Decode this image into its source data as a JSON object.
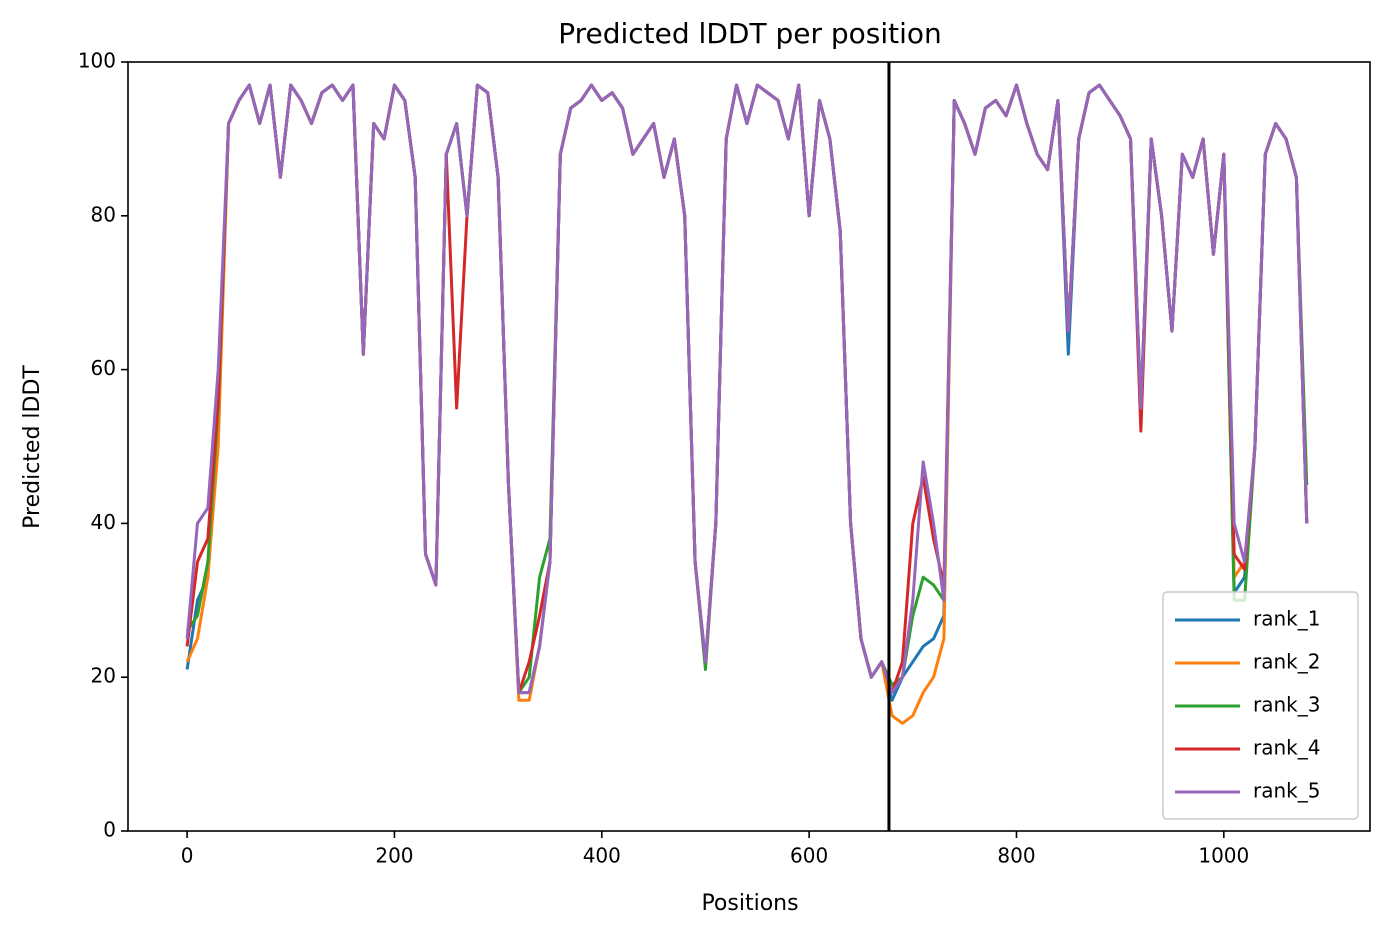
{
  "chart_data": {
    "type": "line",
    "title": "Predicted lDDT per position",
    "xlabel": "Positions",
    "ylabel": "Predicted lDDT",
    "xlim": [
      -57,
      1141
    ],
    "ylim": [
      0,
      100
    ],
    "xticks": [
      0,
      200,
      400,
      600,
      800,
      1000
    ],
    "yticks": [
      0,
      20,
      40,
      60,
      80,
      100
    ],
    "grid": false,
    "legend": "lower right",
    "vlines": [
      {
        "x": 677,
        "color": "#000000"
      }
    ],
    "x": [
      0,
      10,
      20,
      30,
      40,
      50,
      60,
      70,
      80,
      90,
      100,
      110,
      120,
      130,
      140,
      150,
      160,
      170,
      180,
      190,
      200,
      210,
      220,
      230,
      240,
      250,
      260,
      270,
      280,
      290,
      300,
      310,
      320,
      330,
      340,
      350,
      360,
      370,
      380,
      390,
      400,
      410,
      420,
      430,
      440,
      450,
      460,
      470,
      480,
      490,
      500,
      510,
      520,
      530,
      540,
      550,
      560,
      570,
      580,
      590,
      600,
      610,
      620,
      630,
      640,
      650,
      660,
      670,
      680,
      690,
      700,
      710,
      720,
      730,
      740,
      750,
      760,
      770,
      780,
      790,
      800,
      810,
      820,
      830,
      840,
      850,
      860,
      870,
      880,
      890,
      900,
      910,
      920,
      930,
      940,
      950,
      960,
      970,
      980,
      990,
      1000,
      1010,
      1020,
      1030,
      1040,
      1050,
      1060,
      1070,
      1080
    ],
    "series": [
      {
        "name": "rank_1",
        "color": "#1f77b4",
        "values": [
          21,
          30,
          33,
          55,
          92,
          95,
          97,
          92,
          97,
          85,
          97,
          95,
          92,
          96,
          97,
          95,
          97,
          62,
          92,
          90,
          97,
          95,
          85,
          36,
          32,
          88,
          92,
          80,
          97,
          96,
          85,
          45,
          18,
          18,
          24,
          35,
          88,
          94,
          95,
          97,
          95,
          96,
          94,
          88,
          90,
          92,
          85,
          90,
          80,
          35,
          22,
          40,
          90,
          97,
          92,
          97,
          96,
          95,
          90,
          97,
          80,
          95,
          90,
          78,
          40,
          25,
          20,
          22,
          17,
          20,
          22,
          24,
          25,
          28,
          95,
          92,
          88,
          94,
          95,
          93,
          97,
          92,
          88,
          86,
          95,
          62,
          90,
          96,
          97,
          95,
          93,
          90,
          55,
          90,
          80,
          65,
          88,
          85,
          90,
          75,
          88,
          31,
          33,
          50,
          88,
          92,
          90,
          85,
          40
        ]
      },
      {
        "name": "rank_2",
        "color": "#ff7f0e",
        "values": [
          22,
          25,
          33,
          50,
          92,
          95,
          97,
          92,
          97,
          85,
          97,
          95,
          92,
          96,
          97,
          95,
          97,
          62,
          92,
          90,
          97,
          95,
          85,
          36,
          32,
          88,
          92,
          80,
          97,
          96,
          85,
          45,
          17,
          17,
          24,
          35,
          88,
          94,
          95,
          97,
          95,
          96,
          94,
          88,
          90,
          92,
          85,
          90,
          80,
          35,
          22,
          40,
          90,
          97,
          92,
          97,
          96,
          95,
          90,
          97,
          80,
          95,
          90,
          78,
          40,
          25,
          20,
          22,
          15,
          14,
          15,
          18,
          20,
          25,
          95,
          92,
          88,
          94,
          95,
          93,
          97,
          92,
          88,
          86,
          95,
          65,
          90,
          96,
          97,
          95,
          93,
          90,
          55,
          90,
          80,
          65,
          88,
          85,
          90,
          75,
          88,
          33,
          35,
          50,
          88,
          92,
          90,
          85,
          40
        ]
      },
      {
        "name": "rank_3",
        "color": "#2ca02c",
        "values": [
          26,
          28,
          35,
          55,
          92,
          95,
          97,
          92,
          97,
          85,
          97,
          95,
          92,
          96,
          97,
          95,
          97,
          62,
          92,
          90,
          97,
          95,
          85,
          36,
          32,
          88,
          92,
          80,
          97,
          96,
          85,
          45,
          18,
          20,
          33,
          38,
          88,
          94,
          95,
          97,
          95,
          96,
          94,
          88,
          90,
          92,
          85,
          90,
          80,
          35,
          21,
          40,
          90,
          97,
          92,
          97,
          96,
          95,
          90,
          97,
          80,
          95,
          90,
          78,
          40,
          25,
          20,
          22,
          19,
          20,
          28,
          33,
          32,
          30,
          95,
          92,
          88,
          94,
          95,
          93,
          97,
          92,
          88,
          86,
          95,
          65,
          90,
          96,
          97,
          95,
          93,
          90,
          55,
          90,
          80,
          65,
          88,
          85,
          90,
          75,
          88,
          30,
          30,
          50,
          88,
          92,
          90,
          85,
          45
        ]
      },
      {
        "name": "rank_4",
        "color": "#d62728",
        "values": [
          24,
          35,
          38,
          56,
          92,
          95,
          97,
          92,
          97,
          85,
          97,
          95,
          92,
          96,
          97,
          95,
          97,
          62,
          92,
          90,
          97,
          95,
          85,
          36,
          32,
          88,
          55,
          80,
          97,
          96,
          85,
          45,
          18,
          22,
          28,
          35,
          88,
          94,
          95,
          97,
          95,
          96,
          94,
          88,
          90,
          92,
          85,
          90,
          80,
          35,
          22,
          40,
          90,
          97,
          92,
          97,
          96,
          95,
          90,
          97,
          80,
          95,
          90,
          78,
          40,
          25,
          20,
          22,
          18,
          22,
          40,
          46,
          38,
          32,
          95,
          92,
          88,
          94,
          95,
          93,
          97,
          92,
          88,
          86,
          95,
          65,
          90,
          96,
          97,
          95,
          93,
          90,
          52,
          90,
          80,
          65,
          88,
          85,
          90,
          75,
          88,
          36,
          34,
          50,
          88,
          92,
          90,
          85,
          40
        ]
      },
      {
        "name": "rank_5",
        "color": "#9467bd",
        "values": [
          25,
          40,
          42,
          60,
          92,
          95,
          97,
          92,
          97,
          85,
          97,
          95,
          92,
          96,
          97,
          95,
          97,
          62,
          92,
          90,
          97,
          95,
          85,
          36,
          32,
          88,
          92,
          80,
          97,
          96,
          85,
          45,
          18,
          18,
          24,
          35,
          88,
          94,
          95,
          97,
          95,
          96,
          94,
          88,
          90,
          92,
          85,
          90,
          80,
          35,
          22,
          40,
          90,
          97,
          92,
          97,
          96,
          95,
          90,
          97,
          80,
          95,
          90,
          78,
          40,
          25,
          20,
          22,
          18,
          20,
          30,
          48,
          40,
          30,
          95,
          92,
          88,
          94,
          95,
          93,
          97,
          92,
          88,
          86,
          95,
          65,
          90,
          96,
          97,
          95,
          93,
          90,
          55,
          90,
          80,
          65,
          88,
          85,
          90,
          75,
          88,
          40,
          35,
          50,
          88,
          92,
          90,
          85,
          40
        ]
      }
    ]
  }
}
